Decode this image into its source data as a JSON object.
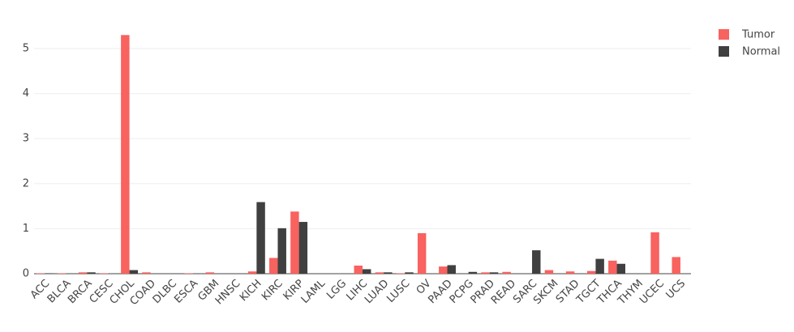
{
  "chart_data": {
    "type": "bar",
    "categories": [
      "ACC",
      "BLCA",
      "BRCA",
      "CESC",
      "CHOL",
      "COAD",
      "DLBC",
      "ESCA",
      "GBM",
      "HNSC",
      "KICH",
      "KIRC",
      "KIRP",
      "LAML",
      "LGG",
      "LIHC",
      "LUAD",
      "LUSC",
      "OV",
      "PAAD",
      "PCPG",
      "PRAD",
      "READ",
      "SARC",
      "SKCM",
      "STAD",
      "TGCT",
      "THCA",
      "THYM",
      "UCEC",
      "UCS"
    ],
    "series": [
      {
        "name": "Tumor",
        "color": "#f8625f",
        "values": [
          0.01,
          0.01,
          0.03,
          0.01,
          5.3,
          0.03,
          0,
          0.01,
          0.03,
          0,
          0.05,
          0.35,
          1.38,
          0,
          0,
          0.18,
          0.03,
          0.01,
          0.9,
          0.16,
          0,
          0.03,
          0.04,
          0,
          0.08,
          0.05,
          0.06,
          0.29,
          0,
          0.92,
          0.37
        ]
      },
      {
        "name": "Normal",
        "color": "#404040",
        "values": [
          0.01,
          0,
          0.03,
          0,
          0.08,
          0,
          0,
          0,
          0,
          0,
          1.59,
          1.01,
          1.15,
          0,
          0,
          0.1,
          0.03,
          0.03,
          0,
          0.19,
          0.04,
          0.03,
          0,
          0.52,
          0,
          0,
          0.33,
          0.22,
          0,
          0,
          0
        ]
      }
    ],
    "ylim": [
      0,
      5.6
    ],
    "yticks": [
      0,
      1,
      2,
      3,
      4,
      5
    ],
    "grid": true,
    "legend": "right"
  }
}
